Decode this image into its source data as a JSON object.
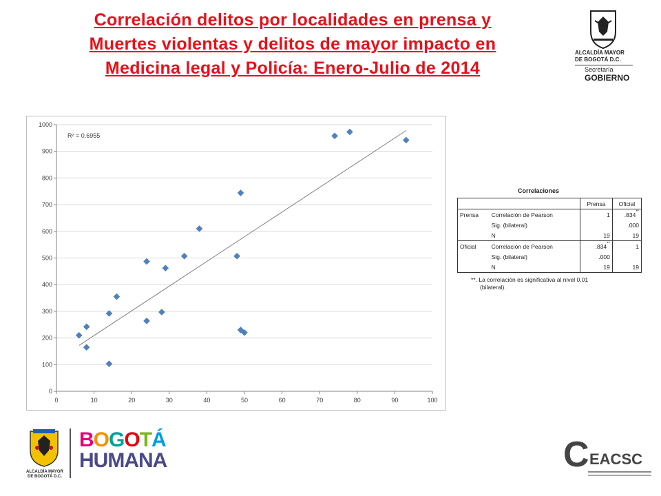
{
  "header": {
    "title_lines": [
      "Correlación delitos por localidades en prensa y",
      "Muertes violentas y delitos de mayor impacto en",
      "Medicina legal y Policía: Enero-Julio de 2014"
    ],
    "logo_alcaldia": {
      "line1": "ALCALDÍA MAYOR",
      "line2": "DE BOGOTÁ D.C.",
      "secretaria": "Secretaría",
      "gobierno": "GOBIERNO"
    }
  },
  "chart_data": {
    "type": "scatter",
    "title": "",
    "xlabel": "",
    "ylabel": "",
    "xlim": [
      0,
      100
    ],
    "ylim": [
      0,
      1000
    ],
    "x_ticks": [
      0,
      10,
      20,
      30,
      40,
      50,
      60,
      70,
      80,
      90,
      100
    ],
    "y_ticks": [
      0,
      100,
      200,
      300,
      400,
      500,
      600,
      700,
      800,
      900,
      1000
    ],
    "grid": "horizontal",
    "annotation": "R² = 0.6955",
    "marker": "diamond",
    "marker_color": "#4f81bd",
    "trendline": {
      "x": [
        6,
        93
      ],
      "y": [
        172,
        978
      ],
      "color": "#808080"
    },
    "points": [
      {
        "x": 6,
        "y": 210
      },
      {
        "x": 8,
        "y": 242
      },
      {
        "x": 8,
        "y": 165
      },
      {
        "x": 14,
        "y": 292
      },
      {
        "x": 14,
        "y": 103
      },
      {
        "x": 16,
        "y": 355
      },
      {
        "x": 24,
        "y": 487
      },
      {
        "x": 24,
        "y": 264
      },
      {
        "x": 28,
        "y": 297
      },
      {
        "x": 29,
        "y": 462
      },
      {
        "x": 34,
        "y": 507
      },
      {
        "x": 38,
        "y": 610
      },
      {
        "x": 48,
        "y": 507
      },
      {
        "x": 49,
        "y": 744
      },
      {
        "x": 49,
        "y": 230
      },
      {
        "x": 50,
        "y": 220
      },
      {
        "x": 74,
        "y": 958
      },
      {
        "x": 78,
        "y": 973
      },
      {
        "x": 93,
        "y": 942
      }
    ]
  },
  "correlations": {
    "title": "Correlaciones",
    "col_headers": [
      "Prensa",
      "Oficial"
    ],
    "rows": [
      {
        "group": "Prensa",
        "stat": "Correlación de Pearson",
        "prensa": "1",
        "oficial": ".834",
        "oficial_sup": "**",
        "prensa_sup": ""
      },
      {
        "group": "",
        "stat": "Sig. (bilateral)",
        "prensa": "",
        "oficial": ".000",
        "oficial_sup": "",
        "prensa_sup": ""
      },
      {
        "group": "",
        "stat": "N",
        "prensa": "19",
        "oficial": "19",
        "oficial_sup": "",
        "prensa_sup": ""
      },
      {
        "group": "Oficial",
        "stat": "Correlación de Pearson",
        "prensa": ".834",
        "oficial": "1",
        "oficial_sup": "",
        "prensa_sup": "**"
      },
      {
        "group": "",
        "stat": "Sig. (bilateral)",
        "prensa": ".000",
        "oficial": "",
        "oficial_sup": "",
        "prensa_sup": ""
      },
      {
        "group": "",
        "stat": "N",
        "prensa": "19",
        "oficial": "19",
        "oficial_sup": "",
        "prensa_sup": ""
      }
    ],
    "footnote_line1": "**. La correlación es significativa al nivel 0,01",
    "footnote_line2": "(bilateral)."
  },
  "footer": {
    "alcaldia_line1": "ALCALDÍA MAYOR",
    "alcaldia_line2": "DE BOGOTÁ D.C.",
    "bogota_word": "BOGOTÁ",
    "humana_word": "HUMANA",
    "ceacsc_logo": "CEACSC",
    "colors": {
      "title_red": "#e8101a",
      "bogota_multicolor": [
        "#e4007c",
        "#f39200",
        "#00a19a",
        "#e30613",
        "#7ab51d",
        "#009ee0"
      ],
      "humana": "#4a4a8a"
    }
  }
}
